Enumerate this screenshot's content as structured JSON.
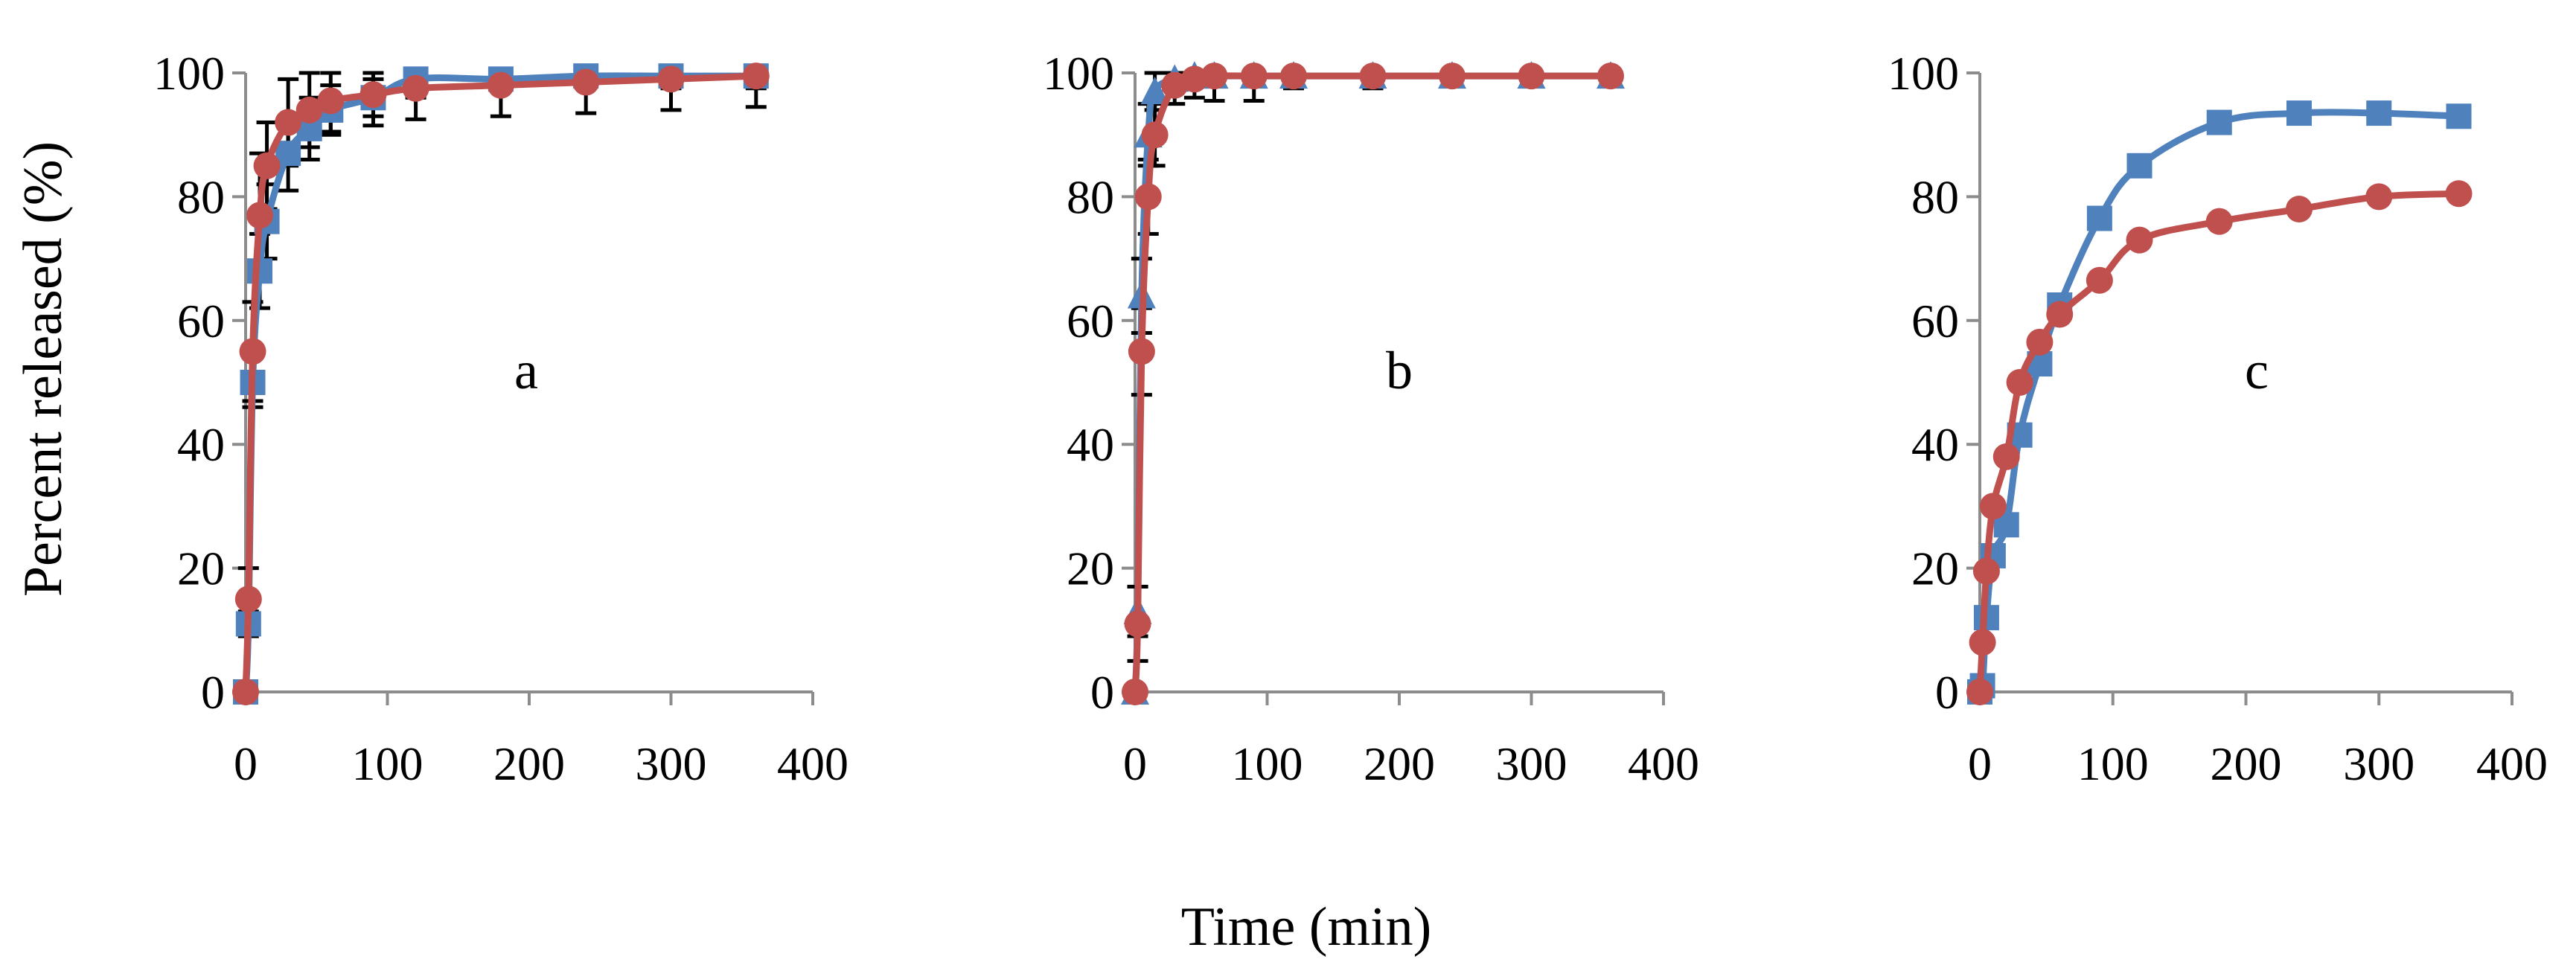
{
  "figure": {
    "ylabel": "Percent released (%)",
    "xlabel": "Time (min)"
  },
  "chart_data": [
    {
      "type": "line",
      "panel_label": "a",
      "xlim": [
        0,
        400
      ],
      "ylim": [
        0,
        100
      ],
      "x_ticks": [
        0,
        100,
        200,
        300,
        400
      ],
      "y_ticks": [
        0,
        20,
        40,
        60,
        80,
        100
      ],
      "x": [
        0,
        2,
        5,
        10,
        15,
        30,
        45,
        60,
        90,
        120,
        180,
        240,
        300,
        360
      ],
      "grid": false,
      "series": [
        {
          "color": "#4f81bd",
          "marker": "square",
          "values": [
            0,
            11,
            50,
            68,
            76,
            87,
            91,
            94,
            96,
            99,
            99,
            99.5,
            99.5,
            99.5
          ],
          "errors": [
            0,
            2,
            4,
            6,
            6,
            6,
            5,
            4,
            3,
            3,
            2,
            2,
            2,
            2
          ]
        },
        {
          "color": "#c0504d",
          "marker": "circle",
          "values": [
            0,
            15,
            55,
            77,
            85,
            92,
            94,
            95.5,
            96.5,
            97.5,
            98,
            98.5,
            99,
            99.5
          ],
          "errors": [
            0,
            5,
            8,
            10,
            7,
            7,
            6,
            5,
            5,
            5,
            5,
            5,
            5,
            5
          ]
        }
      ]
    },
    {
      "type": "line",
      "panel_label": "b",
      "xlim": [
        0,
        400
      ],
      "ylim": [
        0,
        100
      ],
      "x_ticks": [
        0,
        100,
        200,
        300,
        400
      ],
      "y_ticks": [
        0,
        20,
        40,
        60,
        80,
        100
      ],
      "x": [
        0,
        2,
        5,
        10,
        15,
        30,
        45,
        60,
        90,
        120,
        180,
        240,
        300,
        360
      ],
      "grid": false,
      "series": [
        {
          "color": "#4f81bd",
          "marker": "triangle",
          "values": [
            0,
            13,
            64,
            90,
            97,
            99,
            99.5,
            99.5,
            99.5,
            99.5,
            99.5,
            99.5,
            99.5,
            99.5
          ],
          "errors": [
            0,
            4,
            6,
            5,
            3,
            2,
            1,
            1,
            1,
            1,
            1,
            1,
            1,
            1
          ]
        },
        {
          "color": "#c0504d",
          "marker": "circle",
          "values": [
            0,
            11,
            55,
            80,
            90,
            98,
            99,
            99.5,
            99.5,
            99.5,
            99.5,
            99.5,
            99.5,
            99.5
          ],
          "errors": [
            0,
            6,
            7,
            6,
            5,
            3,
            3,
            4,
            4,
            2,
            2,
            1.5,
            1,
            1
          ]
        }
      ]
    },
    {
      "type": "line",
      "panel_label": "c",
      "xlim": [
        0,
        400
      ],
      "ylim": [
        0,
        100
      ],
      "x_ticks": [
        0,
        100,
        200,
        300,
        400
      ],
      "y_ticks": [
        0,
        20,
        40,
        60,
        80,
        100
      ],
      "x": [
        0,
        2,
        5,
        10,
        20,
        30,
        45,
        60,
        90,
        120,
        180,
        240,
        300,
        360
      ],
      "grid": false,
      "series": [
        {
          "color": "#4f81bd",
          "marker": "square",
          "values": [
            0,
            1,
            12,
            22,
            27,
            41.5,
            53,
            62.5,
            76.5,
            85,
            92,
            93.5,
            93.5,
            93
          ],
          "errors": [
            0,
            0.5,
            1,
            1,
            1,
            1,
            1,
            1,
            1,
            1,
            1,
            1,
            1,
            1
          ]
        },
        {
          "color": "#c0504d",
          "marker": "circle",
          "values": [
            0,
            8,
            19.5,
            30,
            38,
            50,
            56.5,
            61,
            66.5,
            73,
            76,
            78,
            80,
            80.5
          ],
          "errors": [
            0,
            0.5,
            1,
            1,
            1,
            1,
            1,
            1,
            1,
            1,
            1,
            1,
            1,
            1
          ]
        }
      ]
    }
  ]
}
